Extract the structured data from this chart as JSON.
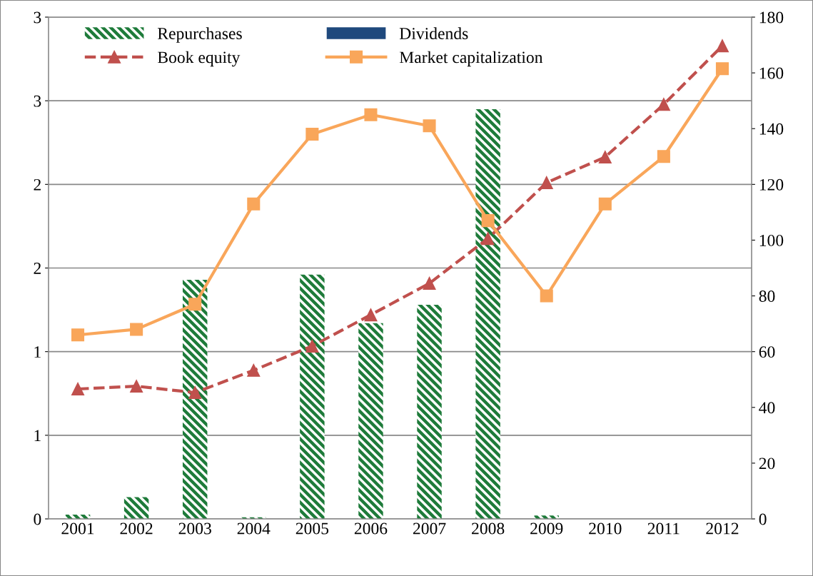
{
  "chart_data": {
    "type": "bar",
    "categories": [
      "2001",
      "2002",
      "2003",
      "2004",
      "2005",
      "2006",
      "2007",
      "2008",
      "2009",
      "2010",
      "2011",
      "2012"
    ],
    "series": [
      {
        "name": "Repurchases",
        "color": "#1e7b3a",
        "values": [
          0.026,
          0.13,
          1.43,
          0.01,
          1.46,
          1.17,
          1.28,
          2.45,
          0.02,
          0,
          0,
          0
        ]
      },
      {
        "name": "Dividends",
        "color": "#1f497d",
        "values": [
          0,
          0,
          0,
          0,
          0,
          0,
          0,
          0,
          0,
          0,
          0,
          0
        ]
      },
      {
        "name": "Book equity",
        "type": "line",
        "axis": "y2",
        "color": "#c0504d",
        "marker": "triangle",
        "line_style": "dashed",
        "values": [
          46.6,
          47.6,
          45.3,
          53.3,
          62,
          73.2,
          84.5,
          100.6,
          120.6,
          129.8,
          148.7,
          169.7
        ]
      },
      {
        "name": "Market capitalization",
        "type": "line",
        "axis": "y2",
        "color": "#f9a65a",
        "marker": "square",
        "line_style": "solid",
        "values": [
          66,
          68,
          77,
          113,
          138,
          145,
          141,
          107,
          80,
          113,
          130,
          161.5
        ]
      }
    ],
    "ylim": [
      0,
      3
    ],
    "yticks": [
      0,
      {
        "value": 0.5,
        "label": "1"
      },
      {
        "value": 1,
        "label": "1"
      },
      {
        "value": 1.5,
        "label": "2"
      },
      {
        "value": 2,
        "label": "2"
      },
      {
        "value": 2.5,
        "label": "3"
      },
      {
        "value": 3,
        "label": "3"
      }
    ],
    "y2lim": [
      0,
      180
    ],
    "y2ticks": [
      0,
      20,
      40,
      60,
      80,
      100,
      120,
      140,
      160,
      180
    ],
    "grid": "y",
    "legend": "top"
  }
}
